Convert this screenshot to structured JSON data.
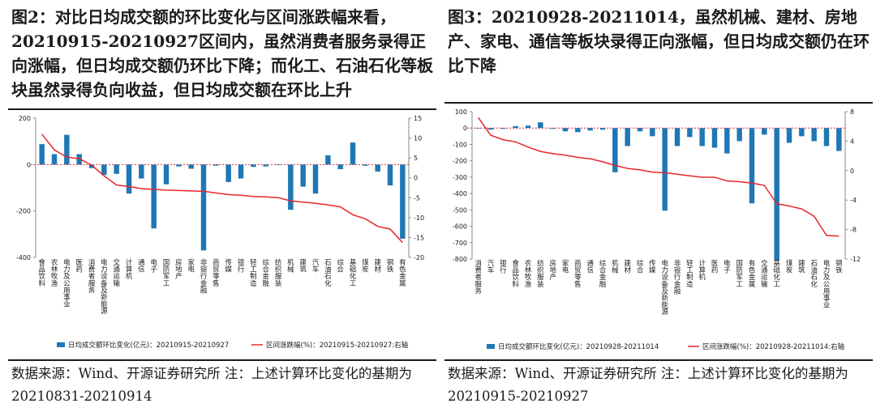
{
  "colors": {
    "bar": "#1f77b4",
    "line": "#e8262a",
    "zero_line": "#e8262a",
    "axis": "#888888",
    "text": "#1b1b1b"
  },
  "figures": [
    {
      "title": "图2：对比日均成交额的环比变化与区间涨跌幅来看，20210915-20210927区间内，虽然消费者服务录得正向涨幅，但日均成交额仍环比下降；而化工、石油石化等板块虽然录得负向收益，但日均成交额在环比上升",
      "source": "数据来源：Wind、开源证券研究所  注：上述计算环比变化的基期为20210831-20210914"
    },
    {
      "title": "图3：20210928-20211014，虽然机械、建材、房地产、家电、通信等板块录得正向涨幅，但日均成交额仍在环比下降",
      "source": "数据来源：Wind、开源证券研究所  注：上述计算环比变化的基期为20210915-20210927"
    }
  ],
  "chart_data": [
    {
      "type": "bar",
      "categories": [
        "食品饮料",
        "农林牧渔",
        "电力及公用事业",
        "医药",
        "消费者服务",
        "电力设备及新能源",
        "交通运输",
        "计算机",
        "通信",
        "电子",
        "国防军工",
        "房地产",
        "家电",
        "非银行金融",
        "商贸零售",
        "传媒",
        "银行",
        "轻工制造",
        "综合金融",
        "纺织服装",
        "机械",
        "建筑",
        "汽车",
        "石油石化",
        "综合",
        "基础化工",
        "煤炭",
        "建材",
        "钢铁",
        "有色金属"
      ],
      "series": [
        {
          "name": "日均成交额环比变化(亿元)：20210915-20210927",
          "axis": "left",
          "kind": "bar",
          "values": [
            88,
            45,
            128,
            45,
            -15,
            -45,
            -40,
            -125,
            -60,
            -275,
            -85,
            -8,
            -18,
            -370,
            -5,
            -75,
            -60,
            -10,
            -8,
            0,
            -195,
            -95,
            -125,
            40,
            -20,
            95,
            -5,
            -30,
            -90,
            -320
          ]
        },
        {
          "name": "区间涨跌幅(%)：20210915-20210927:右轴",
          "axis": "right",
          "kind": "line",
          "values": [
            11,
            7,
            5.2,
            4.8,
            3.2,
            0.5,
            -1.8,
            -2.2,
            -2.7,
            -2.9,
            -3.1,
            -3.2,
            -3.3,
            -3.4,
            -3.8,
            -4.2,
            -4.4,
            -4.7,
            -4.8,
            -5,
            -5.8,
            -6.1,
            -6.4,
            -6.8,
            -7.3,
            -9.3,
            -10.3,
            -12.2,
            -12.9,
            -16.3
          ]
        }
      ],
      "left_ticks": [
        200,
        0,
        -200,
        -400
      ],
      "right_ticks": [
        15,
        10,
        5,
        0,
        -5,
        -10,
        -15,
        -20
      ],
      "ylim_left": [
        -400,
        200
      ],
      "ylim_right": [
        -20,
        15
      ],
      "legend": [
        "日均成交额环比变化(亿元)：20210915-20210927",
        "区间涨跌幅(%)：20210915-20210927:右轴"
      ],
      "legend_position": "bottom"
    },
    {
      "type": "bar",
      "categories": [
        "消费者服务",
        "汽车",
        "银行",
        "食品饮料",
        "农林牧渔",
        "纺织服装",
        "房地产",
        "家电",
        "商贸零售",
        "通信",
        "综合金融",
        "机械",
        "建材",
        "综合",
        "传媒",
        "电力设备及新能源",
        "非银行金融",
        "轻工制造",
        "计算机",
        "医药",
        "电子",
        "国防军工",
        "有色金属",
        "交通运输",
        "基础化工",
        "煤炭",
        "建筑",
        "石油石化",
        "电力及公用事业",
        "钢铁"
      ],
      "series": [
        {
          "name": "日均成交额环比变化(亿元)：20210928-20211014",
          "axis": "left",
          "kind": "bar",
          "values": [
            0,
            -10,
            -5,
            12,
            15,
            35,
            -5,
            -20,
            -25,
            -15,
            -10,
            -270,
            -110,
            -20,
            -50,
            -505,
            -110,
            -55,
            -110,
            -120,
            -155,
            -80,
            -460,
            -40,
            -810,
            -90,
            -50,
            -80,
            -110,
            -140
          ]
        },
        {
          "name": "区间涨跌幅(%)：20210928-20211014:右轴",
          "axis": "right",
          "kind": "line",
          "values": [
            7.2,
            4.8,
            4.2,
            3.9,
            3.2,
            2.6,
            2.3,
            2.1,
            1.8,
            1.6,
            1.2,
            0.7,
            0.3,
            0.1,
            -0.2,
            -0.3,
            -0.5,
            -0.7,
            -0.9,
            -0.9,
            -1.4,
            -1.5,
            -1.7,
            -2,
            -4.5,
            -4.8,
            -5.2,
            -6.2,
            -8.8,
            -8.9
          ]
        }
      ],
      "left_ticks": [
        0,
        -100,
        -200,
        -300,
        -400,
        -500,
        -600,
        -700,
        -800
      ],
      "right_ticks": [
        8,
        4,
        0,
        -4,
        -8,
        -12
      ],
      "ylim_left": [
        -800,
        0
      ],
      "ylim_right": [
        -12,
        8
      ],
      "left_top_tick": 100,
      "legend": [
        "日均成交额环比变化(亿元)：20210928-20211014",
        "区间涨跌幅(%)：20210928-20211014:右轴"
      ],
      "legend_position": "bottom"
    }
  ]
}
